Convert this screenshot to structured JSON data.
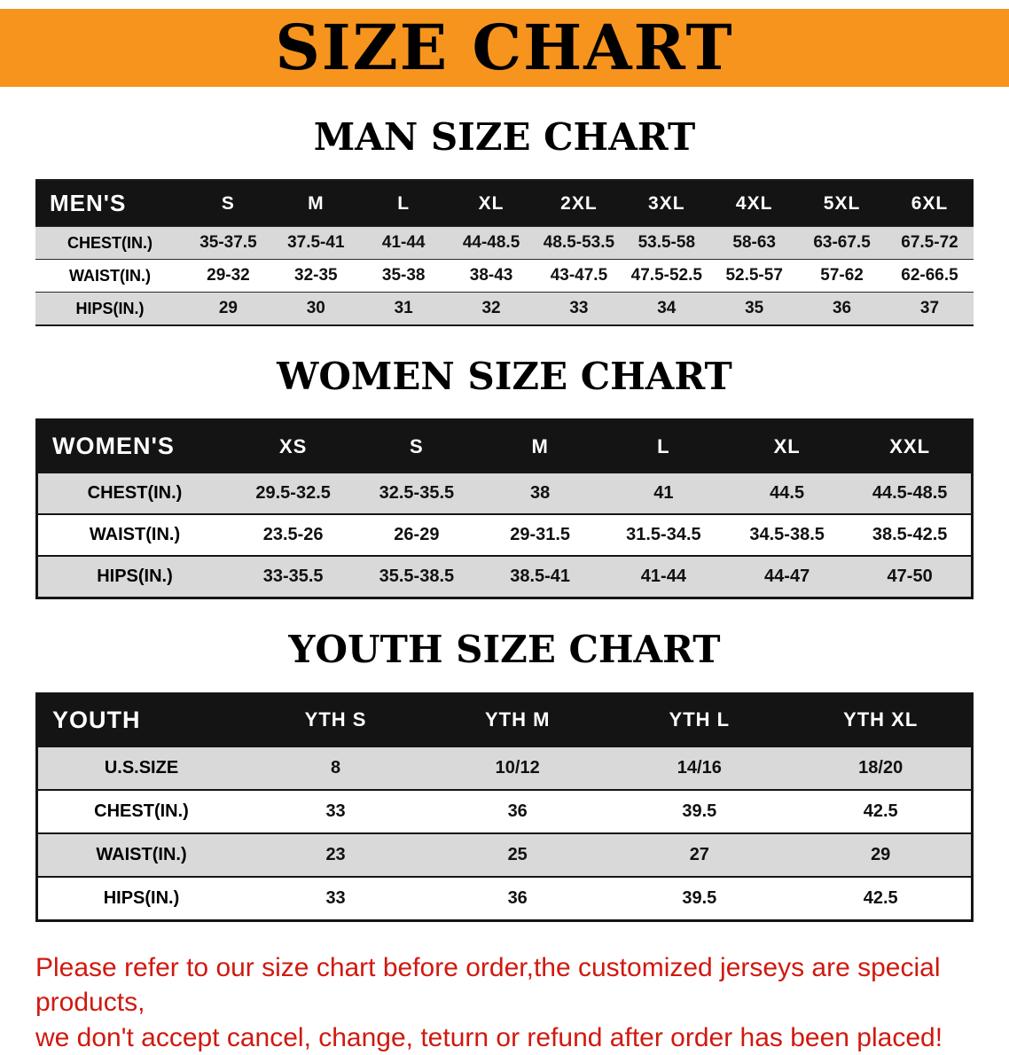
{
  "banner": {
    "title": "SIZE CHART"
  },
  "colors": {
    "banner_bg": "#f7941e",
    "header_bg": "#141414",
    "stripe": "#d9d9d9",
    "footer_text": "#d0190f"
  },
  "men": {
    "heading": "MAN SIZE CHART",
    "table": {
      "header": [
        "MEN'S",
        "S",
        "M",
        "L",
        "XL",
        "2XL",
        "3XL",
        "4XL",
        "5XL",
        "6XL"
      ],
      "rows": [
        [
          "CHEST(IN.)",
          "35-37.5",
          "37.5-41",
          "41-44",
          "44-48.5",
          "48.5-53.5",
          "53.5-58",
          "58-63",
          "63-67.5",
          "67.5-72"
        ],
        [
          "WAIST(IN.)",
          "29-32",
          "32-35",
          "35-38",
          "38-43",
          "43-47.5",
          "47.5-52.5",
          "52.5-57",
          "57-62",
          "62-66.5"
        ],
        [
          "HIPS(IN.)",
          "29",
          "30",
          "31",
          "32",
          "33",
          "34",
          "35",
          "36",
          "37"
        ]
      ]
    }
  },
  "women": {
    "heading": "WOMEN SIZE CHART",
    "table": {
      "header": [
        "WOMEN'S",
        "XS",
        "S",
        "M",
        "L",
        "XL",
        "XXL"
      ],
      "rows": [
        [
          "CHEST(IN.)",
          "29.5-32.5",
          "32.5-35.5",
          "38",
          "41",
          "44.5",
          "44.5-48.5"
        ],
        [
          "WAIST(IN.)",
          "23.5-26",
          "26-29",
          "29-31.5",
          "31.5-34.5",
          "34.5-38.5",
          "38.5-42.5"
        ],
        [
          "HIPS(IN.)",
          "33-35.5",
          "35.5-38.5",
          "38.5-41",
          "41-44",
          "44-47",
          "47-50"
        ]
      ]
    }
  },
  "youth": {
    "heading": "YOUTH SIZE CHART",
    "table": {
      "header": [
        "YOUTH",
        "YTH S",
        "YTH M",
        "YTH L",
        "YTH XL"
      ],
      "rows": [
        [
          "U.S.SIZE",
          "8",
          "10/12",
          "14/16",
          "18/20"
        ],
        [
          "CHEST(IN.)",
          "33",
          "36",
          "39.5",
          "42.5"
        ],
        [
          "WAIST(IN.)",
          "23",
          "25",
          "27",
          "29"
        ],
        [
          "HIPS(IN.)",
          "33",
          "36",
          "39.5",
          "42.5"
        ]
      ]
    }
  },
  "footer": {
    "line1": "Please refer to our size chart before order,the customized jerseys are special products,",
    "line2": "we don't accept cancel, change, teturn or refund after order has been placed!"
  }
}
